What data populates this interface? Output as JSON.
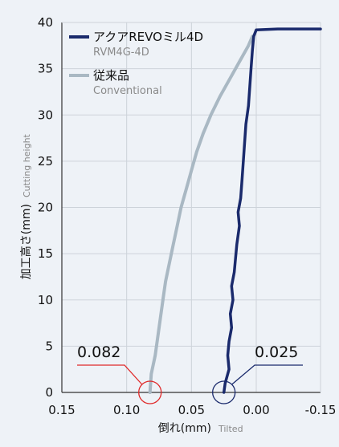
{
  "chart_data": {
    "type": "line",
    "xlabel": "倒れ(mm)",
    "xlabel_sub": "Tilted",
    "ylabel": "加工高さ(mm)",
    "ylabel_sub": "Cutting height",
    "xlim": [
      0.15,
      -0.15
    ],
    "ylim": [
      0,
      40
    ],
    "x_ticks": [
      "0.15",
      "0.10",
      "0.05",
      "0.00",
      "-0.15"
    ],
    "y_ticks": [
      "0",
      "5",
      "10",
      "15",
      "20",
      "25",
      "30",
      "35",
      "40"
    ],
    "grid": true,
    "legend_position": "top-left",
    "series": [
      {
        "name": "アクアREVOミル4D",
        "name_sub": "RVM4G-4D",
        "color": "#1a2a6c",
        "points": [
          [
            0.025,
            0
          ],
          [
            0.024,
            1
          ],
          [
            0.021,
            2.5
          ],
          [
            0.022,
            4
          ],
          [
            0.021,
            5.5
          ],
          [
            0.019,
            7
          ],
          [
            0.02,
            8.5
          ],
          [
            0.018,
            10
          ],
          [
            0.019,
            11.5
          ],
          [
            0.017,
            13
          ],
          [
            0.016,
            14.5
          ],
          [
            0.015,
            16
          ],
          [
            0.013,
            18
          ],
          [
            0.014,
            19.5
          ],
          [
            0.012,
            21
          ],
          [
            0.011,
            23
          ],
          [
            0.01,
            25
          ],
          [
            0.009,
            27
          ],
          [
            0.008,
            29
          ],
          [
            0.006,
            31
          ],
          [
            0.005,
            33
          ],
          [
            0.004,
            35
          ],
          [
            0.003,
            37
          ],
          [
            0.002,
            38.5
          ],
          [
            0.0,
            39.2
          ],
          [
            -0.05,
            39.3
          ],
          [
            -0.1,
            39.3
          ],
          [
            -0.15,
            39.3
          ]
        ]
      },
      {
        "name": "従来品",
        "name_sub": "Conventional",
        "color": "#a9b8c3",
        "points": [
          [
            0.082,
            0
          ],
          [
            0.081,
            2
          ],
          [
            0.078,
            4
          ],
          [
            0.076,
            6
          ],
          [
            0.074,
            8
          ],
          [
            0.072,
            10
          ],
          [
            0.07,
            12
          ],
          [
            0.067,
            14
          ],
          [
            0.064,
            16
          ],
          [
            0.061,
            18
          ],
          [
            0.058,
            20
          ],
          [
            0.054,
            22
          ],
          [
            0.05,
            24
          ],
          [
            0.046,
            26
          ],
          [
            0.041,
            28
          ],
          [
            0.035,
            30
          ],
          [
            0.028,
            32
          ],
          [
            0.02,
            34
          ],
          [
            0.012,
            36
          ],
          [
            0.006,
            37.5
          ],
          [
            0.003,
            38.5
          ]
        ]
      }
    ],
    "annotations": [
      {
        "label": "0.082",
        "x": 0.082,
        "y": 0,
        "color": "#e02828"
      },
      {
        "label": "0.025",
        "x": 0.025,
        "y": 0,
        "color": "#1a2a6c"
      }
    ]
  }
}
